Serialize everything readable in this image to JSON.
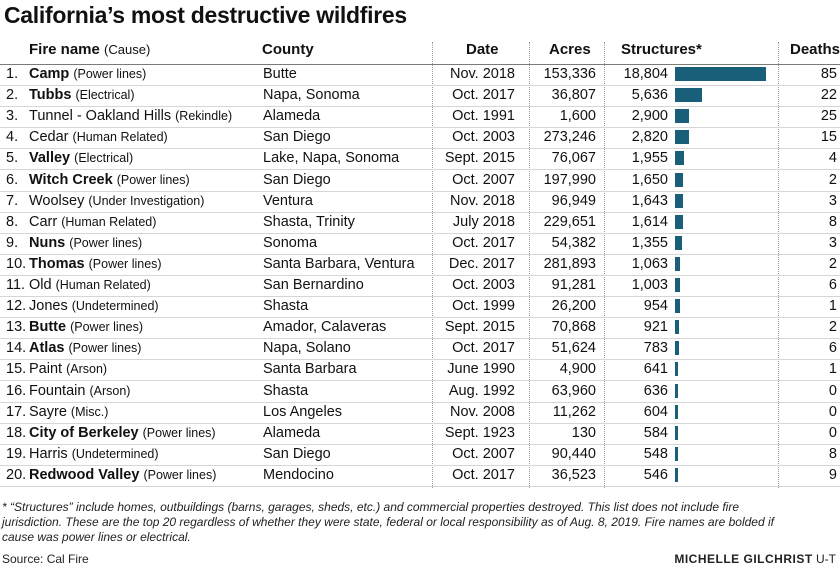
{
  "title": "California’s most destructive wildfires",
  "headers": {
    "fire_name": "Fire name",
    "cause": "(Cause)",
    "county": "County",
    "date": "Date",
    "acres": "Acres",
    "structures": "Structures*",
    "deaths": "Deaths"
  },
  "rows": [
    {
      "rank": "1.",
      "name": "Camp",
      "cause": "(Power lines)",
      "bold": true,
      "county": "Butte",
      "date": "Nov. 2018",
      "acres": "153,336",
      "structures": "18,804",
      "deaths": "85"
    },
    {
      "rank": "2.",
      "name": "Tubbs",
      "cause": "(Electrical)",
      "bold": true,
      "county": "Napa, Sonoma",
      "date": "Oct. 2017",
      "acres": "36,807",
      "structures": "5,636",
      "deaths": "22"
    },
    {
      "rank": "3.",
      "name": "Tunnel - Oakland Hills",
      "cause": "(Rekindle)",
      "bold": false,
      "county": "Alameda",
      "date": "Oct. 1991",
      "acres": "1,600",
      "structures": "2,900",
      "deaths": "25"
    },
    {
      "rank": "4.",
      "name": "Cedar",
      "cause": "(Human Related)",
      "bold": false,
      "county": "San Diego",
      "date": "Oct. 2003",
      "acres": "273,246",
      "structures": "2,820",
      "deaths": "15"
    },
    {
      "rank": "5.",
      "name": "Valley",
      "cause": "(Electrical)",
      "bold": true,
      "county": "Lake, Napa, Sonoma",
      "date": "Sept. 2015",
      "acres": "76,067",
      "structures": "1,955",
      "deaths": "4"
    },
    {
      "rank": "6.",
      "name": "Witch Creek",
      "cause": "(Power lines)",
      "bold": true,
      "county": "San Diego",
      "date": "Oct. 2007",
      "acres": "197,990",
      "structures": "1,650",
      "deaths": "2"
    },
    {
      "rank": "7.",
      "name": "Woolsey",
      "cause": "(Under Investigation)",
      "bold": false,
      "county": "Ventura",
      "date": "Nov. 2018",
      "acres": "96,949",
      "structures": "1,643",
      "deaths": "3"
    },
    {
      "rank": "8.",
      "name": "Carr",
      "cause": "(Human Related)",
      "bold": false,
      "county": "Shasta, Trinity",
      "date": "July 2018",
      "acres": "229,651",
      "structures": "1,614",
      "deaths": "8"
    },
    {
      "rank": "9.",
      "name": "Nuns",
      "cause": "(Power lines)",
      "bold": true,
      "county": "Sonoma",
      "date": "Oct. 2017",
      "acres": "54,382",
      "structures": "1,355",
      "deaths": "3"
    },
    {
      "rank": "10.",
      "name": "Thomas",
      "cause": "(Power lines)",
      "bold": true,
      "county": "Santa Barbara, Ventura",
      "date": "Dec. 2017",
      "acres": "281,893",
      "structures": "1,063",
      "deaths": "2"
    },
    {
      "rank": "11.",
      "name": "Old",
      "cause": "(Human Related)",
      "bold": false,
      "county": "San Bernardino",
      "date": "Oct. 2003",
      "acres": "91,281",
      "structures": "1,003",
      "deaths": "6"
    },
    {
      "rank": "12.",
      "name": "Jones",
      "cause": "(Undetermined)",
      "bold": false,
      "county": "Shasta",
      "date": "Oct. 1999",
      "acres": "26,200",
      "structures": "954",
      "deaths": "1"
    },
    {
      "rank": "13.",
      "name": "Butte",
      "cause": "(Power lines)",
      "bold": true,
      "county": "Amador, Calaveras",
      "date": "Sept. 2015",
      "acres": "70,868",
      "structures": "921",
      "deaths": "2"
    },
    {
      "rank": "14.",
      "name": "Atlas",
      "cause": "(Power lines)",
      "bold": true,
      "county": "Napa, Solano",
      "date": "Oct. 2017",
      "acres": "51,624",
      "structures": "783",
      "deaths": "6"
    },
    {
      "rank": "15.",
      "name": "Paint",
      "cause": "(Arson)",
      "bold": false,
      "county": "Santa Barbara",
      "date": "June 1990",
      "acres": "4,900",
      "structures": "641",
      "deaths": "1"
    },
    {
      "rank": "16.",
      "name": "Fountain",
      "cause": "(Arson)",
      "bold": false,
      "county": "Shasta",
      "date": "Aug. 1992",
      "acres": "63,960",
      "structures": "636",
      "deaths": "0"
    },
    {
      "rank": "17.",
      "name": "Sayre",
      "cause": "(Misc.)",
      "bold": false,
      "county": "Los Angeles",
      "date": "Nov. 2008",
      "acres": "11,262",
      "structures": "604",
      "deaths": "0"
    },
    {
      "rank": "18.",
      "name": "City of Berkeley",
      "cause": "(Power lines)",
      "bold": true,
      "county": "Alameda",
      "date": "Sept. 1923",
      "acres": "130",
      "structures": "584",
      "deaths": "0"
    },
    {
      "rank": "19.",
      "name": "Harris",
      "cause": "(Undetermined)",
      "bold": false,
      "county": "San Diego",
      "date": "Oct. 2007",
      "acres": "90,440",
      "structures": "548",
      "deaths": "8"
    },
    {
      "rank": "20.",
      "name": "Redwood Valley",
      "cause": "(Power lines)",
      "bold": true,
      "county": "Mendocino",
      "date": "Oct. 2017",
      "acres": "36,523",
      "structures": "546",
      "deaths": "9"
    }
  ],
  "chart_data": {
    "type": "bar",
    "orientation": "horizontal",
    "categories": [
      "Camp",
      "Tubbs",
      "Tunnel - Oakland Hills",
      "Cedar",
      "Valley",
      "Witch Creek",
      "Woolsey",
      "Carr",
      "Nuns",
      "Thomas",
      "Old",
      "Jones",
      "Butte",
      "Atlas",
      "Paint",
      "Fountain",
      "Sayre",
      "City of Berkeley",
      "Harris",
      "Redwood Valley"
    ],
    "values": [
      18804,
      5636,
      2900,
      2820,
      1955,
      1650,
      1643,
      1614,
      1355,
      1063,
      1003,
      954,
      921,
      783,
      641,
      636,
      604,
      584,
      548,
      546
    ],
    "bar_color": "#1a5f7a",
    "xlim": [
      0,
      18804
    ]
  },
  "footnote": "* “Structures” include homes, outbuildings (barns, garages, sheds, etc.) and commercial properties destroyed. This list does not include fire jurisdiction. These are the top 20 regardless of whether they were state, federal or local responsibility as of Aug. 8, 2019. Fire names are bolded if cause was power lines or electrical.",
  "source": "Source: Cal Fire",
  "credit": {
    "author": "MICHELLE GILCHRIST",
    "org": "U-T"
  }
}
